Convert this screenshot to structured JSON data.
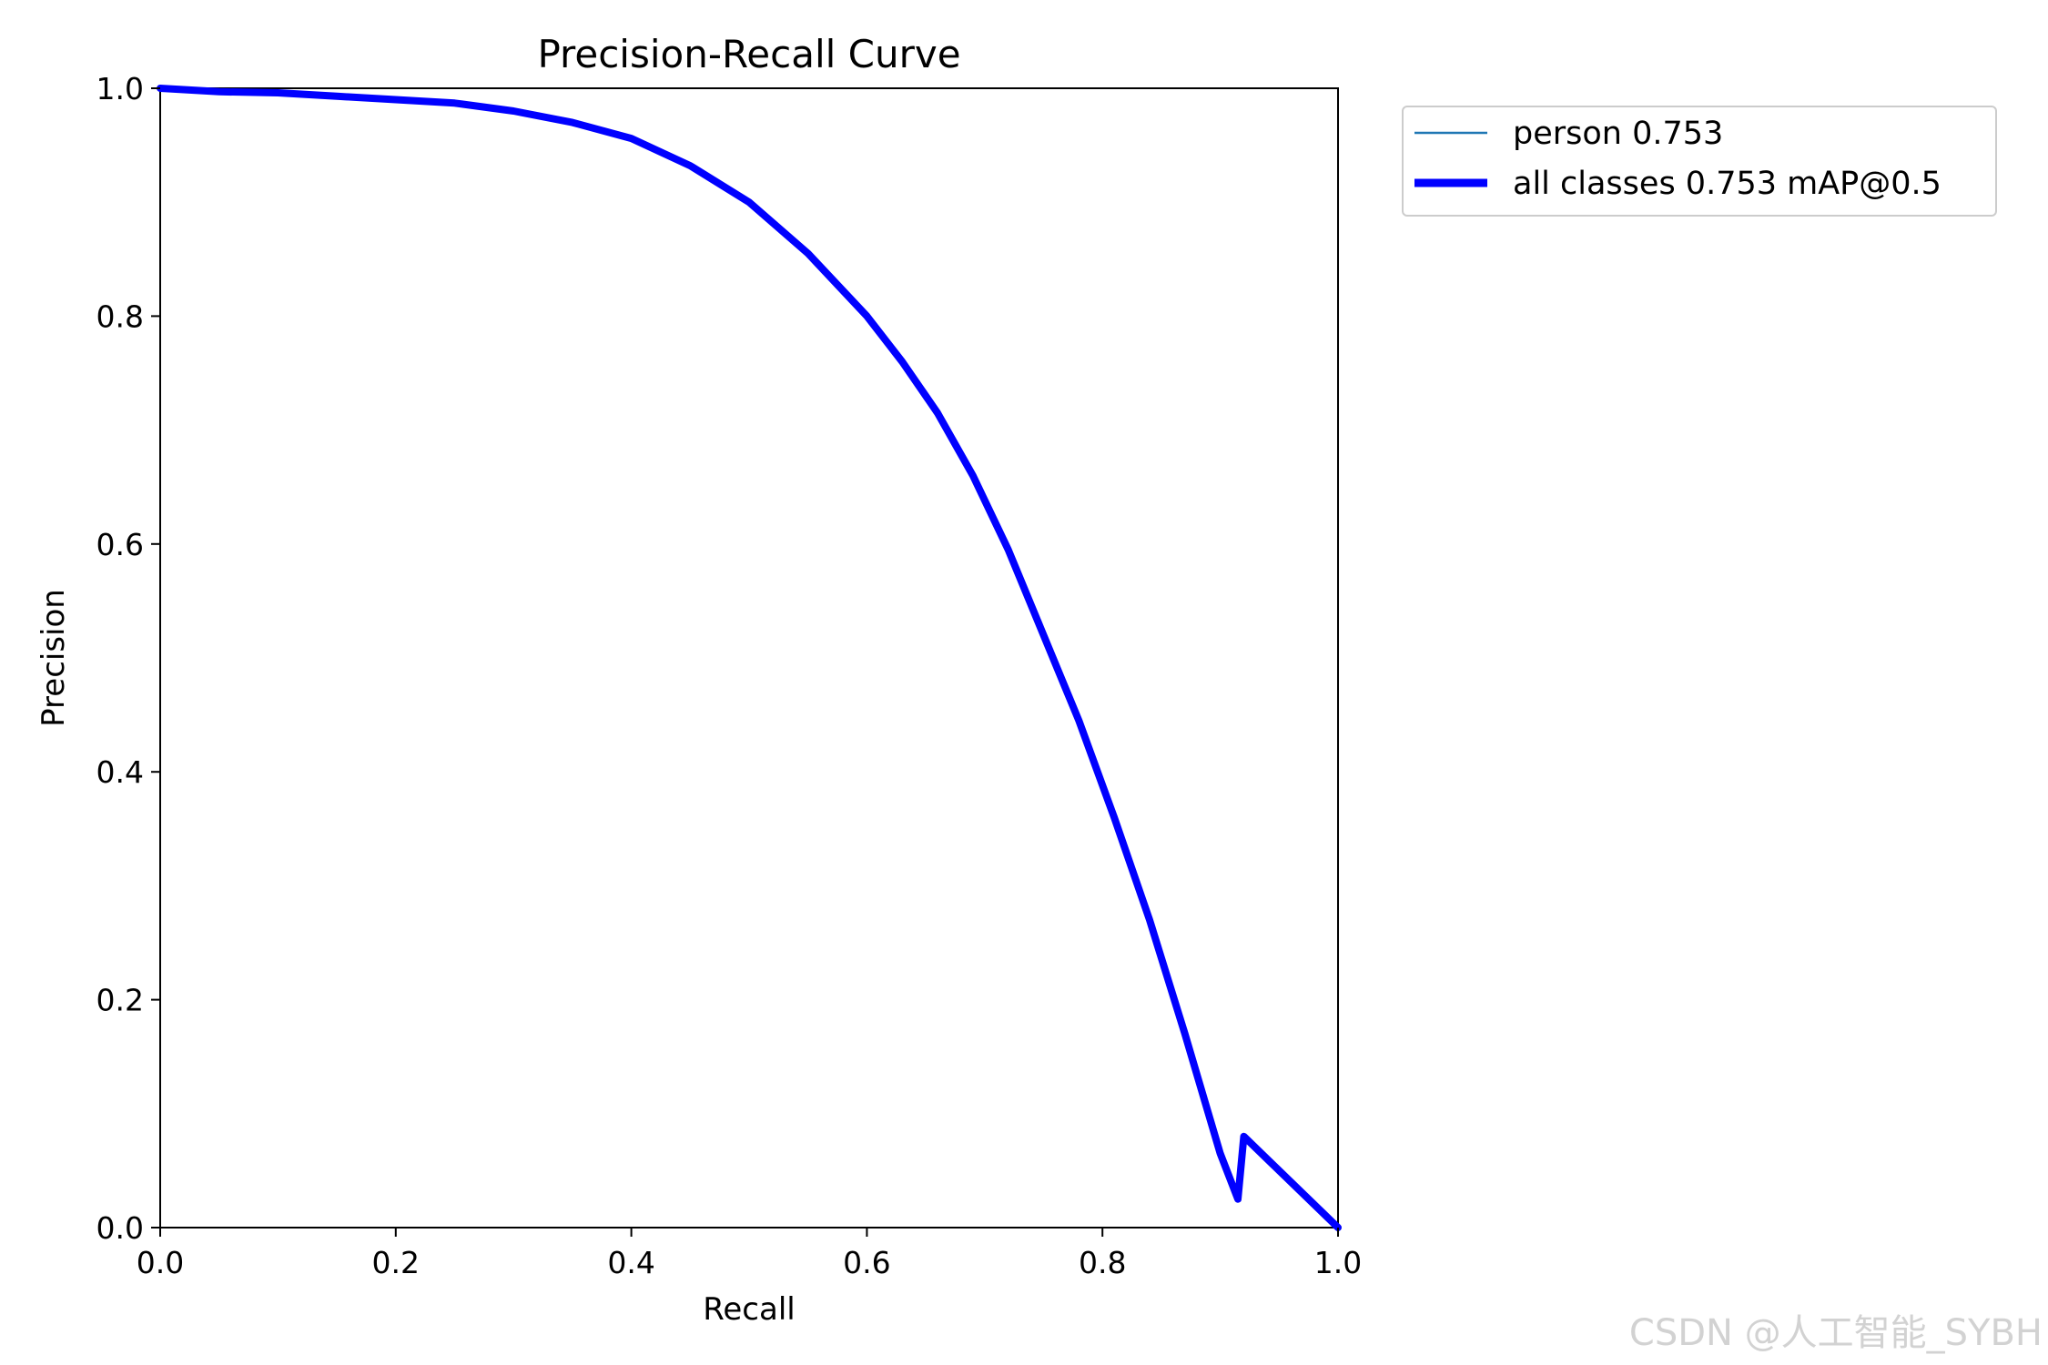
{
  "chart_data": {
    "type": "line",
    "title": "Precision-Recall Curve",
    "xlabel": "Recall",
    "ylabel": "Precision",
    "xlim": [
      0.0,
      1.0
    ],
    "ylim": [
      0.0,
      1.0
    ],
    "xticks": [
      "0.0",
      "0.2",
      "0.4",
      "0.6",
      "0.8",
      "1.0"
    ],
    "yticks": [
      "0.0",
      "0.2",
      "0.4",
      "0.6",
      "0.8",
      "1.0"
    ],
    "grid": false,
    "legend_position": "outside-top-right",
    "series": [
      {
        "name": "person 0.753",
        "color": "#1f77b4",
        "style": "thin",
        "x": [
          0.0,
          0.05,
          0.1,
          0.15,
          0.2,
          0.25,
          0.3,
          0.35,
          0.4,
          0.45,
          0.5,
          0.55,
          0.6,
          0.63,
          0.66,
          0.69,
          0.72,
          0.75,
          0.78,
          0.81,
          0.84,
          0.87,
          0.9,
          0.915,
          0.92,
          1.0
        ],
        "y": [
          1.0,
          0.997,
          0.996,
          0.993,
          0.99,
          0.987,
          0.98,
          0.97,
          0.956,
          0.932,
          0.9,
          0.855,
          0.8,
          0.76,
          0.715,
          0.66,
          0.595,
          0.52,
          0.445,
          0.36,
          0.27,
          0.17,
          0.065,
          0.025,
          0.08,
          0.0
        ]
      },
      {
        "name": "all classes 0.753 mAP@0.5",
        "color": "#0000ff",
        "style": "thick",
        "x": [
          0.0,
          0.05,
          0.1,
          0.15,
          0.2,
          0.25,
          0.3,
          0.35,
          0.4,
          0.45,
          0.5,
          0.55,
          0.6,
          0.63,
          0.66,
          0.69,
          0.72,
          0.75,
          0.78,
          0.81,
          0.84,
          0.87,
          0.9,
          0.915,
          0.92,
          1.0
        ],
        "y": [
          1.0,
          0.997,
          0.996,
          0.993,
          0.99,
          0.987,
          0.98,
          0.97,
          0.956,
          0.932,
          0.9,
          0.855,
          0.8,
          0.76,
          0.715,
          0.66,
          0.595,
          0.52,
          0.445,
          0.36,
          0.27,
          0.17,
          0.065,
          0.025,
          0.08,
          0.0
        ]
      }
    ]
  },
  "watermark": "CSDN @人工智能_SYBH"
}
